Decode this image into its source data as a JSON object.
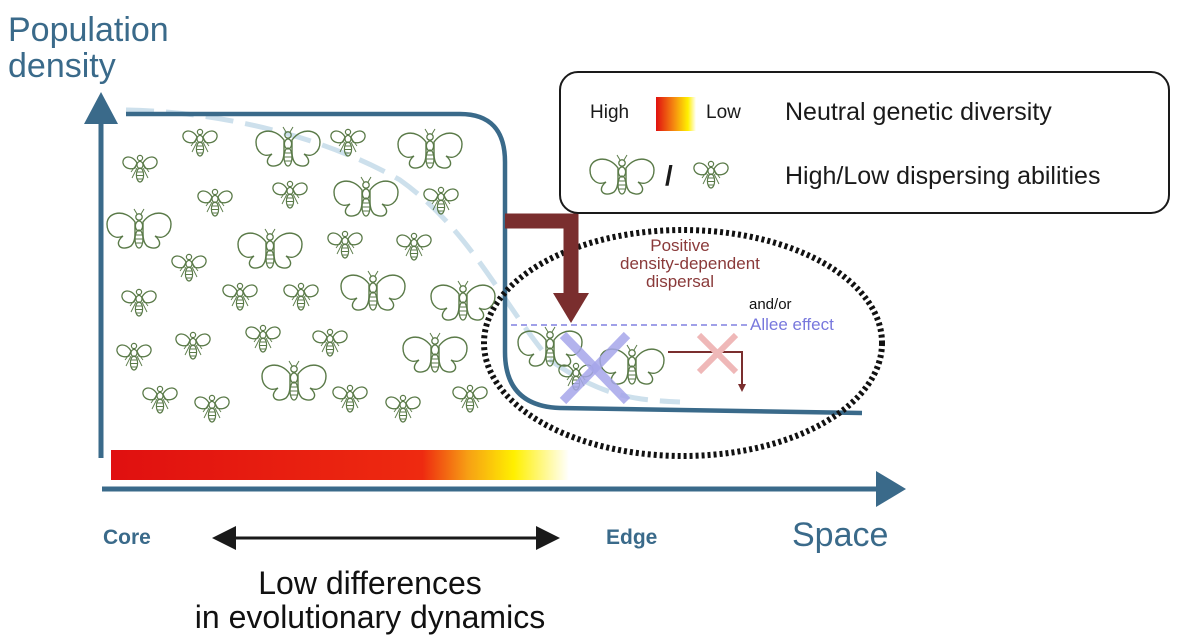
{
  "axes": {
    "y_title_line1": "Population",
    "y_title_line2": "density",
    "x_title": "Space"
  },
  "legend": {
    "gradient_high": "High",
    "gradient_low": "Low",
    "genetic_diversity_label": "Neutral genetic diversity",
    "separator": "/",
    "dispersing_label": "High/Low dispersing abilities"
  },
  "mechanisms": {
    "density_dependent_line1": "Positive",
    "density_dependent_line2": "density-dependent",
    "density_dependent_line3": "dispersal",
    "and_or": "and/or",
    "allee": "Allee effect"
  },
  "x_labels": {
    "core": "Core",
    "edge": "Edge"
  },
  "bottom": {
    "line1": "Low differences",
    "line2": "in evolutionary dynamics"
  },
  "colors": {
    "axis": "#3a6a8a",
    "insect": "#5a7a48",
    "dispersal_arrow": "#7a2e2e",
    "allee": "#8080e0",
    "gradient_high": "#e01010",
    "gradient_mid": "#ffee00"
  }
}
